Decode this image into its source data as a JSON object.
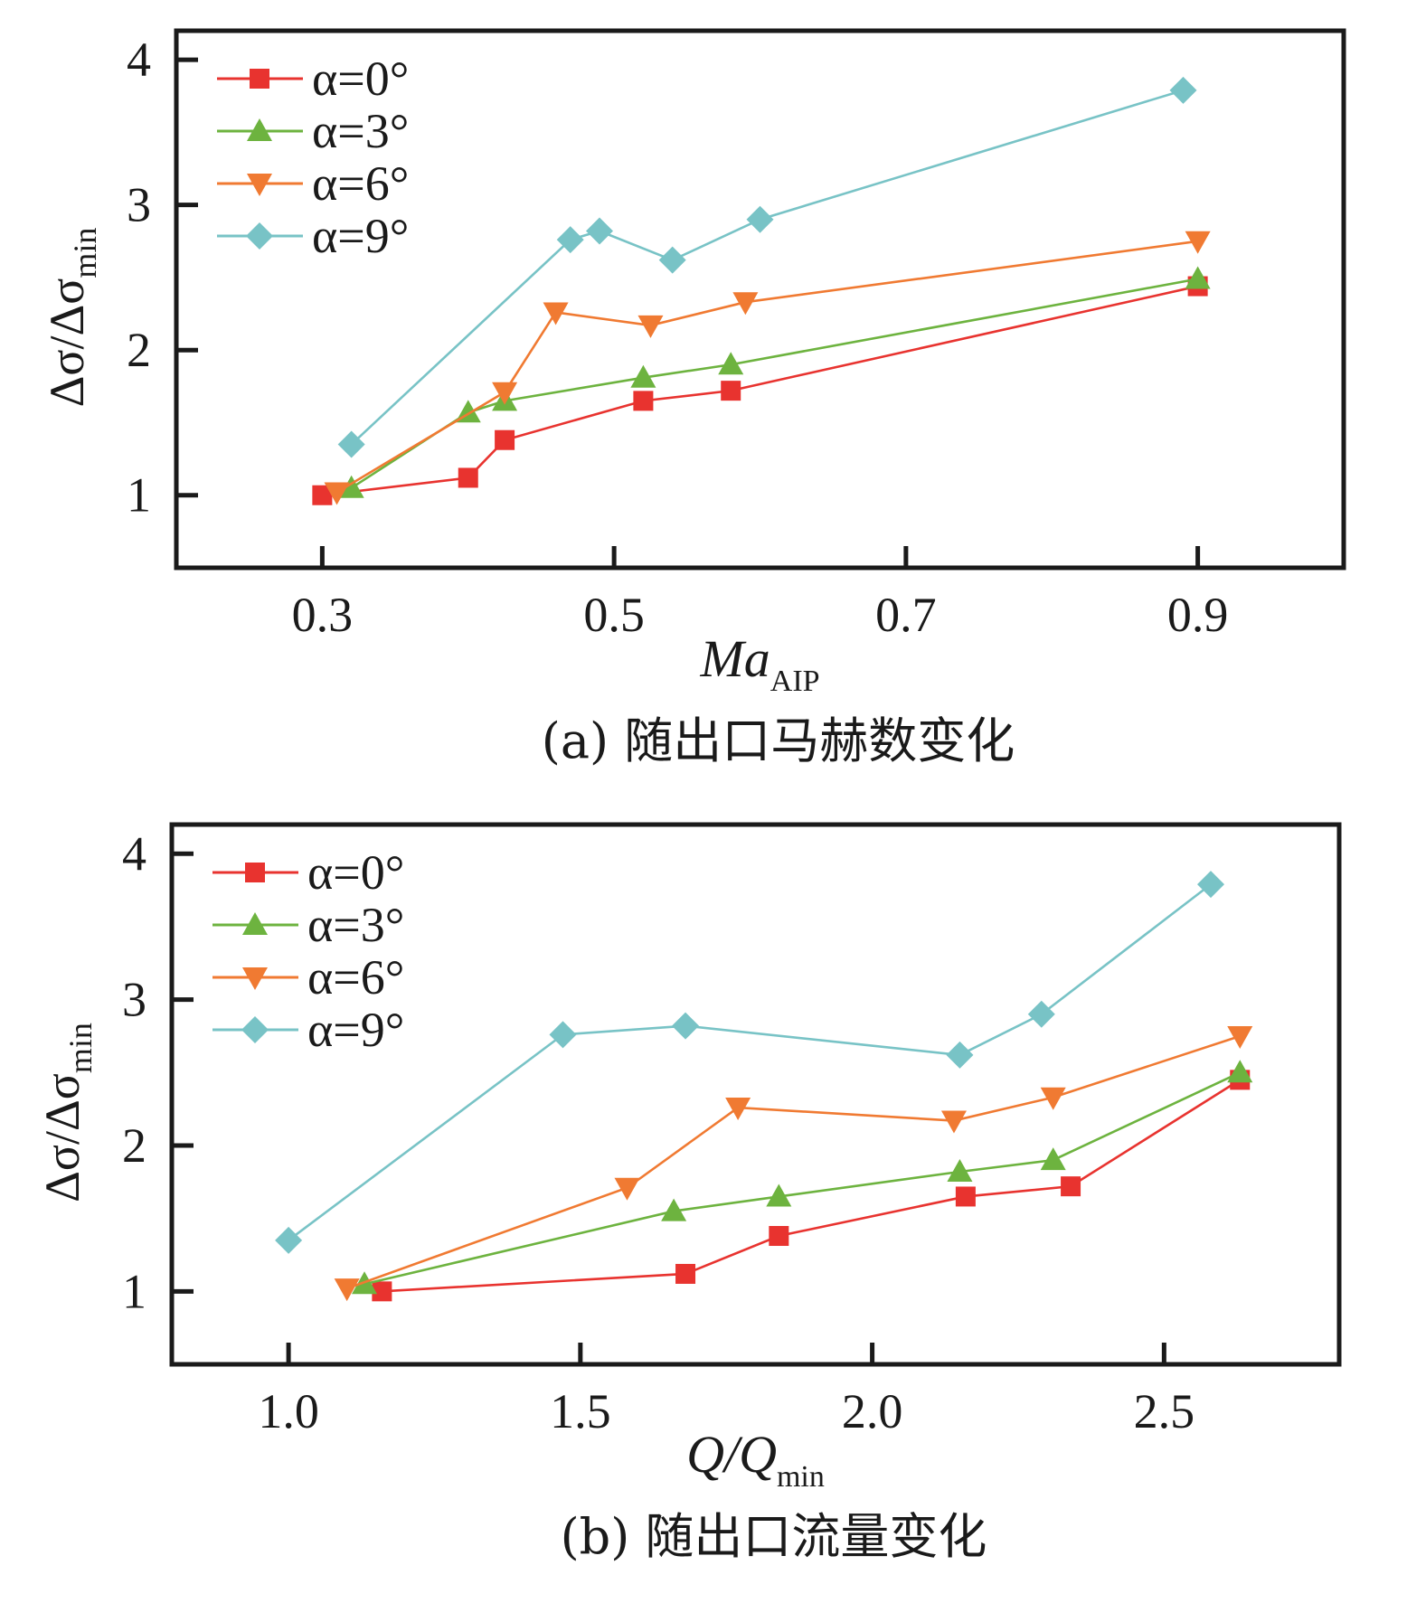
{
  "chart_data": [
    {
      "type": "line",
      "title": "(a) 随出口马赫数变化",
      "xlabel": "Ma",
      "xlabel_sub": "AIP",
      "ylabel": "Δσ/Δσ",
      "ylabel_sub": "min",
      "xlim": [
        0.2,
        1.0
      ],
      "ylim": [
        0.5,
        4.2
      ],
      "xticks": [
        0.3,
        0.5,
        0.7,
        0.9
      ],
      "xtick_labels": [
        "0.3",
        "0.5",
        "0.7",
        "0.9"
      ],
      "yticks": [
        1,
        2,
        3,
        4
      ],
      "ytick_labels": [
        "1",
        "2",
        "3",
        "4"
      ],
      "grid": false,
      "legend_position": "top-left",
      "series": [
        {
          "name": "α=0°",
          "color": "#e8332f",
          "marker": "square",
          "x": [
            0.3,
            0.4,
            0.425,
            0.52,
            0.58,
            0.9
          ],
          "y": [
            1.0,
            1.12,
            1.38,
            1.65,
            1.72,
            2.44
          ]
        },
        {
          "name": "α=3°",
          "color": "#6db33f",
          "marker": "triangle-up",
          "x": [
            0.32,
            0.4,
            0.425,
            0.52,
            0.58,
            0.9
          ],
          "y": [
            1.05,
            1.57,
            1.65,
            1.81,
            1.9,
            2.49
          ]
        },
        {
          "name": "α=6°",
          "color": "#f07a32",
          "marker": "triangle-down",
          "x": [
            0.31,
            0.425,
            0.46,
            0.525,
            0.59,
            0.9
          ],
          "y": [
            1.02,
            1.71,
            2.26,
            2.17,
            2.33,
            2.75
          ]
        },
        {
          "name": "α=9°",
          "color": "#78c3c6",
          "marker": "diamond",
          "x": [
            0.32,
            0.47,
            0.49,
            0.54,
            0.6,
            0.89
          ],
          "y": [
            1.35,
            2.76,
            2.82,
            2.62,
            2.9,
            3.79
          ]
        }
      ]
    },
    {
      "type": "line",
      "title": "(b) 随出口流量变化",
      "xlabel": "Q/Q",
      "xlabel_sub": "min",
      "ylabel": "Δσ/Δσ",
      "ylabel_sub": "min",
      "xlim": [
        0.8,
        2.8
      ],
      "ylim": [
        0.5,
        4.2
      ],
      "xticks": [
        1.0,
        1.5,
        2.0,
        2.5
      ],
      "xtick_labels": [
        "1.0",
        "1.5",
        "2.0",
        "2.5"
      ],
      "yticks": [
        1,
        2,
        3,
        4
      ],
      "ytick_labels": [
        "1",
        "2",
        "3",
        "4"
      ],
      "grid": false,
      "legend_position": "top-left",
      "series": [
        {
          "name": "α=0°",
          "color": "#e8332f",
          "marker": "square",
          "x": [
            1.16,
            1.68,
            1.84,
            2.16,
            2.34,
            2.63
          ],
          "y": [
            1.0,
            1.12,
            1.38,
            1.65,
            1.72,
            2.45
          ]
        },
        {
          "name": "α=3°",
          "color": "#6db33f",
          "marker": "triangle-up",
          "x": [
            1.13,
            1.66,
            1.84,
            2.15,
            2.31,
            2.63
          ],
          "y": [
            1.05,
            1.55,
            1.65,
            1.82,
            1.9,
            2.5
          ]
        },
        {
          "name": "α=6°",
          "color": "#f07a32",
          "marker": "triangle-down",
          "x": [
            1.1,
            1.58,
            1.77,
            2.14,
            2.31,
            2.63
          ],
          "y": [
            1.02,
            1.71,
            2.26,
            2.17,
            2.33,
            2.75
          ]
        },
        {
          "name": "α=9°",
          "color": "#78c3c6",
          "marker": "diamond",
          "x": [
            1.0,
            1.47,
            1.68,
            2.15,
            2.29,
            2.58
          ],
          "y": [
            1.35,
            2.76,
            2.82,
            2.62,
            2.9,
            3.79
          ]
        }
      ]
    }
  ]
}
